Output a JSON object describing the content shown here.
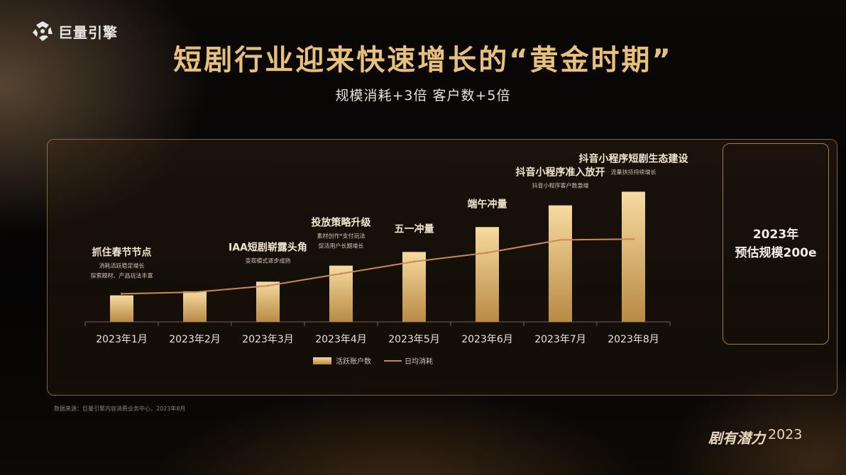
{
  "header": {
    "logo_text": "巨量引擎",
    "title": "短剧行业迎来快速增长的“黄金时期”",
    "subtitle": "规模消耗+3倍  客户数+5倍"
  },
  "chart_data": {
    "type": "bar",
    "categories": [
      "2023年1月",
      "2023年2月",
      "2023年3月",
      "2023年4月",
      "2023年5月",
      "2023年6月",
      "2023年7月",
      "2023年8月"
    ],
    "series": [
      {
        "name": "活跃账户数",
        "kind": "bar",
        "values": [
          33,
          38,
          50,
          70,
          87,
          118,
          145,
          162
        ]
      },
      {
        "name": "日均消耗",
        "kind": "line",
        "values": [
          35,
          37,
          45,
          60,
          75,
          86,
          102,
          103
        ]
      }
    ],
    "ylim": [
      0,
      180
    ],
    "annotations": [
      {
        "category": "2023年1月",
        "title": "抓住春节节点",
        "detail": [
          "消耗活跃稳定增长",
          "探索题材、产品玩法丰富"
        ]
      },
      {
        "category": "2023年3月",
        "title": "IAA短剧崭露头角",
        "detail": [
          "变现模式逐步成熟"
        ]
      },
      {
        "category": "2023年4月",
        "title": "投放策略升级",
        "detail": [
          "素材创作*支付玩法",
          "促活用户长期增长"
        ]
      },
      {
        "category": "2023年5月",
        "title": "五一冲量",
        "detail": []
      },
      {
        "category": "2023年6月",
        "title": "端午冲量",
        "detail": []
      },
      {
        "category": "2023年7月",
        "title": "抖音小程序准入放开",
        "detail": [
          "抖音小程序客户数激增"
        ]
      },
      {
        "category": "2023年8月",
        "title": "抖音小程序短剧生态建设",
        "detail": [
          "流量扶持持续增长"
        ]
      }
    ],
    "legend_position": "bottom",
    "colors": {
      "bar_top": "#f6dba0",
      "bar_bottom": "#b98a44",
      "line": "#c88a57",
      "annotation": "#f2e6d0"
    }
  },
  "side_box": {
    "line1": "2023年",
    "line2": "预估规模200e"
  },
  "footer": {
    "source": "数据来源：巨量引擎内容消费业务中心，2023年8月",
    "brand": "剧有潜力",
    "brand_year": "2023"
  }
}
